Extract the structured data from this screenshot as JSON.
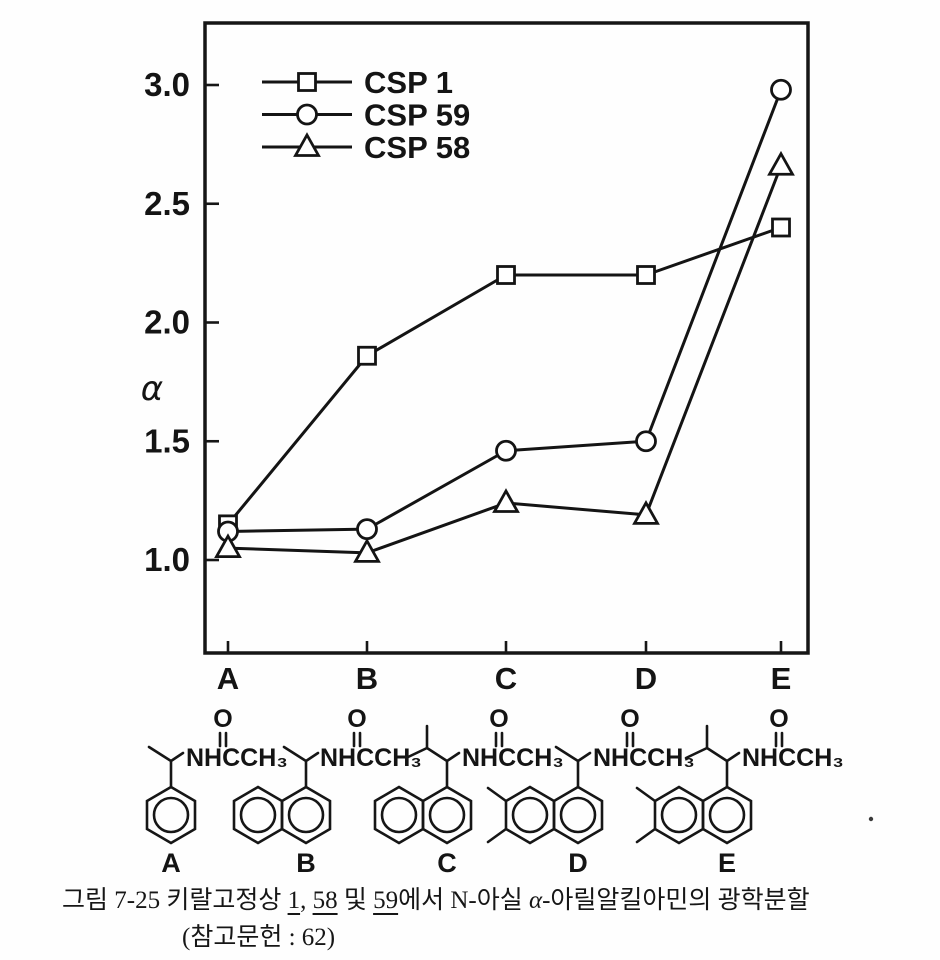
{
  "page": {
    "background": "#ffffff",
    "ink": "#141414"
  },
  "chart_data": {
    "type": "line",
    "title": "",
    "categories": [
      "A",
      "B",
      "C",
      "D",
      "E"
    ],
    "series": [
      {
        "name": "CSP 1",
        "marker": "square",
        "values": [
          1.15,
          1.86,
          2.2,
          2.2,
          2.4
        ]
      },
      {
        "name": "CSP 59",
        "marker": "circle",
        "values": [
          1.12,
          1.13,
          1.46,
          1.5,
          2.98
        ]
      },
      {
        "name": "CSP 58",
        "marker": "triangle",
        "values": [
          1.05,
          1.03,
          1.24,
          1.19,
          2.66
        ]
      }
    ],
    "xlabel": "",
    "ylabel": "α",
    "yticks": [
      3.0,
      2.5,
      2.0,
      1.5,
      1.0
    ],
    "ylim": [
      0.61,
      3.26
    ],
    "grid": false,
    "legend_position": "top-left",
    "line_color": "#141414",
    "marker_fill": "#ffffff"
  },
  "structures": [
    {
      "label": "A",
      "ring": "phenyl",
      "substituent": "methyl",
      "amide_text": "NHCCH₃",
      "carbonyl_text": "O"
    },
    {
      "label": "B",
      "ring": "1-naphthyl",
      "substituent": "methyl",
      "amide_text": "NHCCH₃",
      "carbonyl_text": "O"
    },
    {
      "label": "C",
      "ring": "1-naphthyl",
      "substituent": "isopropyl",
      "amide_text": "NHCCH₃",
      "carbonyl_text": "O"
    },
    {
      "label": "D",
      "ring": "6,7-dimethyl-1-naphthyl",
      "substituent": "methyl",
      "amide_text": "NHCCH₃",
      "carbonyl_text": "O"
    },
    {
      "label": "E",
      "ring": "6,7-dimethyl-1-naphthyl",
      "substituent": "isopropyl",
      "amide_text": "NHCCH₃",
      "carbonyl_text": "O"
    }
  ],
  "caption": {
    "line1_parts": [
      {
        "text": "그림 7-25  키랄고정상 ",
        "underline": false
      },
      {
        "text": "1",
        "underline": true
      },
      {
        "text": ", ",
        "underline": false
      },
      {
        "text": "58",
        "underline": true
      },
      {
        "text": " 및 ",
        "underline": false
      },
      {
        "text": "59",
        "underline": true
      },
      {
        "text": "에서 N-아실 ",
        "underline": false
      },
      {
        "text": "α",
        "underline": false,
        "italic": true
      },
      {
        "text": "-아릴알킬아민의 광학분할",
        "underline": false
      }
    ],
    "line2": "(참고문헌 : 62)"
  }
}
